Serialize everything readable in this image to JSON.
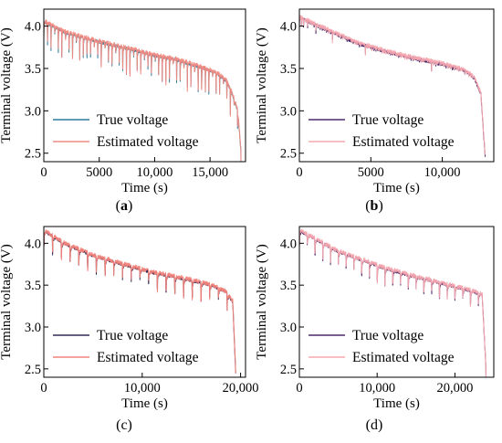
{
  "chart_data": [
    {
      "panel": "a",
      "type": "line",
      "xlabel": "Time (s)",
      "ylabel": "Terminal voltage (V)",
      "xlim": [
        0,
        18200
      ],
      "ylim": [
        2.4,
        4.2
      ],
      "xticks": [
        0,
        5000,
        10000,
        15000
      ],
      "xtick_labels": [
        "0",
        "5000",
        "10,000",
        "15,000"
      ],
      "yticks": [
        2.5,
        3.0,
        3.5,
        4.0
      ],
      "ytick_labels": [
        "2.5",
        "3.0",
        "3.5",
        "4.0"
      ],
      "legend_position": "lower-left",
      "profile": {
        "x": [
          0,
          2000,
          4000,
          6000,
          8000,
          10000,
          12000,
          14000,
          15500,
          16500,
          17000,
          17500,
          17800
        ],
        "y": [
          4.05,
          3.92,
          3.85,
          3.78,
          3.72,
          3.65,
          3.6,
          3.52,
          3.45,
          3.35,
          3.2,
          3.0,
          2.5
        ]
      },
      "pulse_count": 55,
      "pulse_depth": 0.3,
      "series": [
        {
          "name": "True voltage",
          "color": "#2f7b9b"
        },
        {
          "name": "Estimated voltage",
          "color": "#f28b82"
        }
      ]
    },
    {
      "panel": "b",
      "type": "line",
      "xlabel": "Time (s)",
      "ylabel": "Terminal voltage (V)",
      "xlim": [
        0,
        13600
      ],
      "ylim": [
        2.4,
        4.2
      ],
      "xticks": [
        0,
        5000,
        10000
      ],
      "xtick_labels": [
        "0",
        "5000",
        "10,000"
      ],
      "yticks": [
        2.5,
        3.0,
        3.5,
        4.0
      ],
      "ytick_labels": [
        "2.5",
        "3.0",
        "3.5",
        "4.0"
      ],
      "legend_position": "lower-left",
      "profile": {
        "x": [
          0,
          2000,
          4000,
          6000,
          8000,
          10000,
          11500,
          12200,
          12700,
          13000
        ],
        "y": [
          4.1,
          3.95,
          3.8,
          3.7,
          3.62,
          3.55,
          3.48,
          3.4,
          3.2,
          2.45
        ]
      },
      "pulse_count": 90,
      "pulse_depth": 0.12,
      "series": [
        {
          "name": "True voltage",
          "color": "#4b2a6b"
        },
        {
          "name": "Estimated voltage",
          "color": "#f7a8b0"
        }
      ]
    },
    {
      "panel": "c",
      "type": "line",
      "xlabel": "Time (s)",
      "ylabel": "Terminal voltage (V)",
      "xlim": [
        0,
        20500
      ],
      "ylim": [
        2.4,
        4.2
      ],
      "xticks": [
        0,
        10000,
        20000
      ],
      "xtick_labels": [
        "0",
        "10,000",
        "20,000"
      ],
      "yticks": [
        2.5,
        3.0,
        3.5,
        4.0
      ],
      "ytick_labels": [
        "2.5",
        "3.0",
        "3.5",
        "4.0"
      ],
      "legend_position": "lower-left",
      "profile": {
        "x": [
          0,
          2000,
          5000,
          8000,
          11000,
          14000,
          17000,
          18500,
          19200,
          19500
        ],
        "y": [
          4.15,
          4.0,
          3.85,
          3.75,
          3.65,
          3.58,
          3.5,
          3.42,
          3.3,
          2.45
        ]
      },
      "pulse_count": 22,
      "pulse_depth": 0.22,
      "series": [
        {
          "name": "True voltage",
          "color": "#2e2a55"
        },
        {
          "name": "Estimated voltage",
          "color": "#f4847c"
        }
      ]
    },
    {
      "panel": "d",
      "type": "line",
      "xlabel": "Time (s)",
      "ylabel": "Terminal voltage (V)",
      "xlim": [
        0,
        25000
      ],
      "ylim": [
        2.4,
        4.2
      ],
      "xticks": [
        0,
        10000,
        20000
      ],
      "xtick_labels": [
        "0",
        "10,000",
        "20,000"
      ],
      "yticks": [
        2.5,
        3.0,
        3.5,
        4.0
      ],
      "ytick_labels": [
        "2.5",
        "3.0",
        "3.5",
        "4.0"
      ],
      "legend_position": "lower-left",
      "profile": {
        "x": [
          0,
          2000,
          5000,
          8000,
          11000,
          14000,
          17000,
          20000,
          22500,
          23500,
          24000
        ],
        "y": [
          4.15,
          4.05,
          3.9,
          3.8,
          3.7,
          3.62,
          3.55,
          3.48,
          3.42,
          3.38,
          2.5
        ]
      },
      "pulse_count": 24,
      "pulse_depth": 0.2,
      "series": [
        {
          "name": "True voltage",
          "color": "#4b2a6b"
        },
        {
          "name": "Estimated voltage",
          "color": "#f7a8b0"
        }
      ]
    }
  ],
  "captions": [
    {
      "open": "(",
      "letter": "a",
      "close": ")",
      "bold": true
    },
    {
      "open": "(",
      "letter": "b",
      "close": ")",
      "bold": true
    },
    {
      "open": "(",
      "letter": "c",
      "close": ")",
      "bold": false
    },
    {
      "open": "(",
      "letter": "d",
      "close": ")",
      "bold": false
    }
  ]
}
